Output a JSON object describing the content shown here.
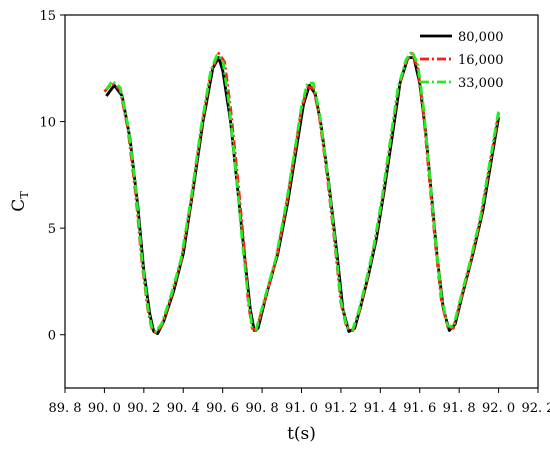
{
  "chart_data": {
    "type": "line",
    "title": "",
    "xlabel": "t(s)",
    "ylabel_main": "C",
    "ylabel_sub": "T",
    "xlim": [
      89.8,
      92.2
    ],
    "ylim": [
      -2.5,
      15
    ],
    "x_ticks": [
      89.8,
      90.0,
      90.2,
      90.4,
      90.6,
      90.8,
      91.0,
      91.2,
      91.4,
      91.6,
      91.8,
      92.0,
      92.2
    ],
    "x_tick_labels": [
      "89. 8",
      "90. 0",
      "90. 2",
      "90. 4",
      "90. 6",
      "90. 8",
      "91. 0",
      "91. 2",
      "91. 4",
      "91. 6",
      "91. 8",
      "92. 0",
      "92. 2"
    ],
    "y_ticks": [
      0,
      5,
      10,
      15
    ],
    "y_tick_labels": [
      "0",
      "5",
      "10",
      "15"
    ],
    "grid": false,
    "legend_position": "top-right",
    "series": [
      {
        "name": "80,000",
        "color": "#000000",
        "dash": "solid",
        "points": [
          [
            90.01,
            11.2
          ],
          [
            90.05,
            11.7
          ],
          [
            90.09,
            11.2
          ],
          [
            90.13,
            9.2
          ],
          [
            90.17,
            6.0
          ],
          [
            90.2,
            3.0
          ],
          [
            90.23,
            1.0
          ],
          [
            90.25,
            0.15
          ],
          [
            90.27,
            0.05
          ],
          [
            90.3,
            0.6
          ],
          [
            90.35,
            2.0
          ],
          [
            90.4,
            3.8
          ],
          [
            90.45,
            6.8
          ],
          [
            90.5,
            10.0
          ],
          [
            90.55,
            12.5
          ],
          [
            90.58,
            13.0
          ],
          [
            90.6,
            12.4
          ],
          [
            90.64,
            10.0
          ],
          [
            90.68,
            6.5
          ],
          [
            90.71,
            3.8
          ],
          [
            90.74,
            1.2
          ],
          [
            90.76,
            0.2
          ],
          [
            90.78,
            0.3
          ],
          [
            90.82,
            1.8
          ],
          [
            90.88,
            3.8
          ],
          [
            90.93,
            6.2
          ],
          [
            90.97,
            8.5
          ],
          [
            91.01,
            10.8
          ],
          [
            91.04,
            11.7
          ],
          [
            91.07,
            11.3
          ],
          [
            91.1,
            9.8
          ],
          [
            91.14,
            7.0
          ],
          [
            91.18,
            3.8
          ],
          [
            91.21,
            1.2
          ],
          [
            91.24,
            0.15
          ],
          [
            91.27,
            0.3
          ],
          [
            91.3,
            1.3
          ],
          [
            91.34,
            2.8
          ],
          [
            91.38,
            4.5
          ],
          [
            91.42,
            6.8
          ],
          [
            91.46,
            9.3
          ],
          [
            91.5,
            11.8
          ],
          [
            91.54,
            13.0
          ],
          [
            91.57,
            13.0
          ],
          [
            91.6,
            11.8
          ],
          [
            91.63,
            9.5
          ],
          [
            91.66,
            6.5
          ],
          [
            91.69,
            3.5
          ],
          [
            91.72,
            1.2
          ],
          [
            91.75,
            0.2
          ],
          [
            91.78,
            0.5
          ],
          [
            91.82,
            2.0
          ],
          [
            91.87,
            3.8
          ],
          [
            91.92,
            5.8
          ],
          [
            91.96,
            8.0
          ],
          [
            92.0,
            10.2
          ]
        ]
      },
      {
        "name": "16,000",
        "color": "#ff1a1a",
        "dash": "dashdot",
        "points": [
          [
            90.0,
            11.4
          ],
          [
            90.04,
            11.8
          ],
          [
            90.08,
            11.5
          ],
          [
            90.12,
            9.6
          ],
          [
            90.16,
            6.5
          ],
          [
            90.19,
            3.4
          ],
          [
            90.22,
            1.2
          ],
          [
            90.24,
            0.3
          ],
          [
            90.26,
            0.1
          ],
          [
            90.29,
            0.4
          ],
          [
            90.34,
            1.8
          ],
          [
            90.39,
            3.5
          ],
          [
            90.44,
            6.3
          ],
          [
            90.49,
            9.6
          ],
          [
            90.54,
            12.3
          ],
          [
            90.58,
            13.2
          ],
          [
            90.61,
            12.8
          ],
          [
            90.64,
            10.6
          ],
          [
            90.68,
            7.0
          ],
          [
            90.71,
            4.0
          ],
          [
            90.73,
            1.5
          ],
          [
            90.75,
            0.3
          ],
          [
            90.77,
            0.2
          ],
          [
            90.81,
            1.5
          ],
          [
            90.87,
            3.5
          ],
          [
            90.92,
            5.9
          ],
          [
            90.96,
            8.2
          ],
          [
            91.0,
            10.6
          ],
          [
            91.03,
            11.6
          ],
          [
            91.06,
            11.6
          ],
          [
            91.09,
            10.3
          ],
          [
            91.13,
            7.5
          ],
          [
            91.17,
            4.2
          ],
          [
            91.2,
            1.5
          ],
          [
            91.23,
            0.3
          ],
          [
            91.26,
            0.2
          ],
          [
            91.29,
            1.0
          ],
          [
            91.33,
            2.5
          ],
          [
            91.37,
            4.2
          ],
          [
            91.41,
            6.4
          ],
          [
            91.45,
            9.0
          ],
          [
            91.49,
            11.5
          ],
          [
            91.53,
            12.8
          ],
          [
            91.56,
            13.2
          ],
          [
            91.59,
            12.5
          ],
          [
            91.62,
            10.3
          ],
          [
            91.65,
            7.2
          ],
          [
            91.68,
            4.2
          ],
          [
            91.71,
            1.6
          ],
          [
            91.74,
            0.4
          ],
          [
            91.77,
            0.3
          ],
          [
            91.81,
            1.7
          ],
          [
            91.86,
            3.5
          ],
          [
            91.91,
            5.5
          ],
          [
            91.95,
            7.7
          ],
          [
            92.0,
            10.4
          ]
        ]
      },
      {
        "name": "33,000",
        "color": "#22ee22",
        "dash": "dashdot",
        "points": [
          [
            90.01,
            11.5
          ],
          [
            90.04,
            11.9
          ],
          [
            90.08,
            11.6
          ],
          [
            90.12,
            9.8
          ],
          [
            90.16,
            6.8
          ],
          [
            90.19,
            3.6
          ],
          [
            90.22,
            1.3
          ],
          [
            90.24,
            0.35
          ],
          [
            90.26,
            0.15
          ],
          [
            90.29,
            0.5
          ],
          [
            90.34,
            1.9
          ],
          [
            90.39,
            3.6
          ],
          [
            90.44,
            6.4
          ],
          [
            90.49,
            9.7
          ],
          [
            90.54,
            12.4
          ],
          [
            90.57,
            13.1
          ],
          [
            90.6,
            12.9
          ],
          [
            90.63,
            11.0
          ],
          [
            90.67,
            7.4
          ],
          [
            90.7,
            4.3
          ],
          [
            90.73,
            1.7
          ],
          [
            90.75,
            0.35
          ],
          [
            90.77,
            0.25
          ],
          [
            90.81,
            1.6
          ],
          [
            90.87,
            3.6
          ],
          [
            90.92,
            6.0
          ],
          [
            90.96,
            8.3
          ],
          [
            91.0,
            10.7
          ],
          [
            91.03,
            11.8
          ],
          [
            91.06,
            11.8
          ],
          [
            91.09,
            10.5
          ],
          [
            91.13,
            7.7
          ],
          [
            91.17,
            4.4
          ],
          [
            91.2,
            1.6
          ],
          [
            91.23,
            0.35
          ],
          [
            91.26,
            0.25
          ],
          [
            91.29,
            1.1
          ],
          [
            91.33,
            2.6
          ],
          [
            91.37,
            4.3
          ],
          [
            91.41,
            6.5
          ],
          [
            91.45,
            9.1
          ],
          [
            91.49,
            11.6
          ],
          [
            91.53,
            12.9
          ],
          [
            91.56,
            13.3
          ],
          [
            91.59,
            12.7
          ],
          [
            91.62,
            10.6
          ],
          [
            91.65,
            7.5
          ],
          [
            91.68,
            4.4
          ],
          [
            91.71,
            1.8
          ],
          [
            91.74,
            0.45
          ],
          [
            91.77,
            0.35
          ],
          [
            91.81,
            1.8
          ],
          [
            91.86,
            3.6
          ],
          [
            91.91,
            5.6
          ],
          [
            91.95,
            7.8
          ],
          [
            92.0,
            10.5
          ]
        ]
      }
    ]
  }
}
